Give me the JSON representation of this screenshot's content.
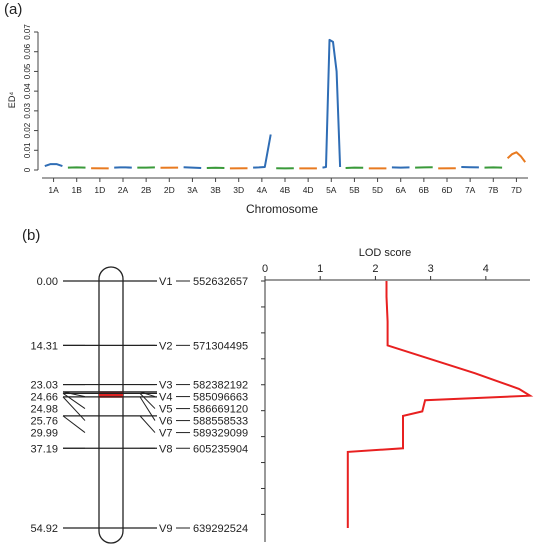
{
  "panel_a": {
    "label": "(a)",
    "chart_data": {
      "type": "line",
      "ylabel": "ED⁴",
      "xlabel": "Chromosome",
      "ylim": [
        0,
        0.07
      ],
      "yticks": [
        "0",
        "0.01",
        "0.02",
        "0.03",
        "0.04",
        "0.05",
        "0.06",
        "0.07"
      ],
      "chromosomes": [
        {
          "name": "1A",
          "color": "#2f6db5",
          "values": [
            0.002,
            0.003,
            0.003,
            0.002
          ]
        },
        {
          "name": "1B",
          "color": "#3a9a3a",
          "values": [
            0.0012,
            0.0013,
            0.0012
          ]
        },
        {
          "name": "1D",
          "color": "#e87a20",
          "values": [
            0.0009,
            0.0008
          ]
        },
        {
          "name": "2A",
          "color": "#2f6db5",
          "values": [
            0.0012,
            0.0013,
            0.0013,
            0.0012
          ]
        },
        {
          "name": "2B",
          "color": "#3a9a3a",
          "values": [
            0.0012,
            0.0012,
            0.0013
          ]
        },
        {
          "name": "2D",
          "color": "#e87a20",
          "values": [
            0.0011,
            0.0012
          ]
        },
        {
          "name": "3A",
          "color": "#2f6db5",
          "values": [
            0.0014,
            0.0012,
            0.001
          ]
        },
        {
          "name": "3B",
          "color": "#3a9a3a",
          "values": [
            0.001,
            0.0011,
            0.001
          ]
        },
        {
          "name": "3D",
          "color": "#e87a20",
          "values": [
            0.0008,
            0.0009
          ]
        },
        {
          "name": "4A",
          "color": "#2f6db5",
          "values": [
            0.0012,
            0.0013,
            0.0015,
            0.018
          ]
        },
        {
          "name": "4B",
          "color": "#3a9a3a",
          "values": [
            0.0009,
            0.0008,
            0.0009
          ]
        },
        {
          "name": "4D",
          "color": "#e87a20",
          "values": [
            0.0008,
            0.0008
          ]
        },
        {
          "name": "5A",
          "color": "#2f6db5",
          "values": [
            0.0012,
            0.0015,
            0.066,
            0.065,
            0.05,
            0.0015
          ]
        },
        {
          "name": "5B",
          "color": "#3a9a3a",
          "values": [
            0.001,
            0.0012,
            0.0011
          ]
        },
        {
          "name": "5D",
          "color": "#e87a20",
          "values": [
            0.0008,
            0.0008
          ]
        },
        {
          "name": "6A",
          "color": "#2f6db5",
          "values": [
            0.0013,
            0.0012,
            0.0013
          ]
        },
        {
          "name": "6B",
          "color": "#3a9a3a",
          "values": [
            0.0012,
            0.0013,
            0.0014
          ]
        },
        {
          "name": "6D",
          "color": "#e87a20",
          "values": [
            0.0008,
            0.0009
          ]
        },
        {
          "name": "7A",
          "color": "#2f6db5",
          "values": [
            0.0015,
            0.0014,
            0.0013
          ]
        },
        {
          "name": "7B",
          "color": "#3a9a3a",
          "values": [
            0.0012,
            0.0013,
            0.0012
          ]
        },
        {
          "name": "7D",
          "color": "#e87a20",
          "values": [
            0.006,
            0.008,
            0.009,
            0.007,
            0.004
          ]
        }
      ]
    }
  },
  "panel_b": {
    "label": "(b)",
    "chromosome_color": "#222222",
    "highlight_color": "#e02020",
    "markers": [
      {
        "pos": "0.00",
        "cm": 0.0,
        "name": "V1",
        "physical": "552632657"
      },
      {
        "pos": "14.31",
        "cm": 14.31,
        "name": "V2",
        "physical": "571304495"
      },
      {
        "pos": "23.03",
        "cm": 23.03,
        "name": "V3",
        "physical": "582382192"
      },
      {
        "pos": "24.66",
        "cm": 24.66,
        "name": "V4",
        "physical": "585096663"
      },
      {
        "pos": "24.98",
        "cm": 24.98,
        "name": "V5",
        "physical": "586669120"
      },
      {
        "pos": "25.76",
        "cm": 25.76,
        "name": "V6",
        "physical": "588558533"
      },
      {
        "pos": "29.99",
        "cm": 29.99,
        "name": "V7",
        "physical": "589329099"
      },
      {
        "pos": "37.19",
        "cm": 37.19,
        "name": "V8",
        "physical": "605235904"
      },
      {
        "pos": "54.92",
        "cm": 54.92,
        "name": "V9",
        "physical": "639292524"
      }
    ],
    "chart_data": {
      "type": "line",
      "title": "LOD score",
      "xlim": [
        0,
        4.8
      ],
      "xticks": [
        "0",
        "1",
        "2",
        "3",
        "4"
      ],
      "series_color": "#e82020",
      "points": [
        [
          2.2,
          0.0
        ],
        [
          2.2,
          3.5
        ],
        [
          2.22,
          9.0
        ],
        [
          2.22,
          14.31
        ],
        [
          3.8,
          20.5
        ],
        [
          4.6,
          24.0
        ],
        [
          4.8,
          25.5
        ],
        [
          2.9,
          26.5
        ],
        [
          2.85,
          29.0
        ],
        [
          2.5,
          29.99
        ],
        [
          2.5,
          37.19
        ],
        [
          1.5,
          38.0
        ],
        [
          1.5,
          54.92
        ]
      ]
    }
  }
}
